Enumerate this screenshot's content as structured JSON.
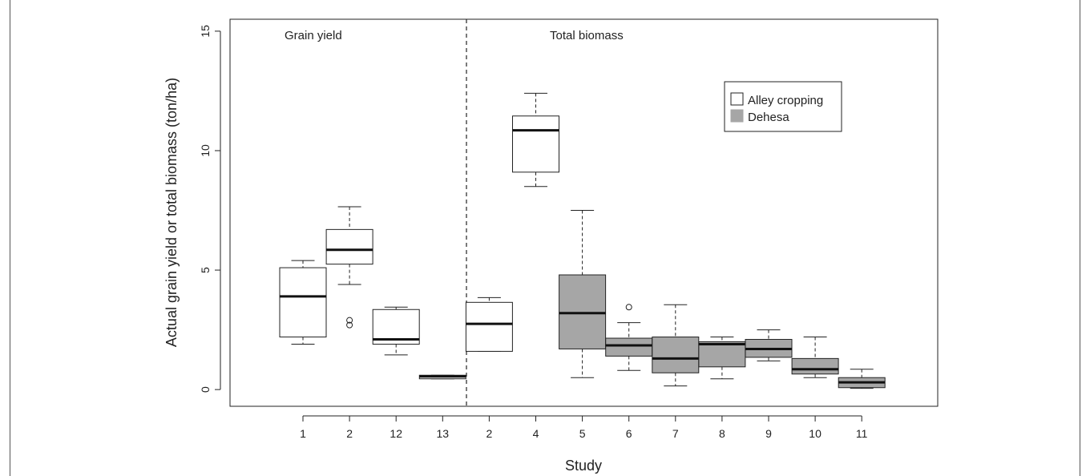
{
  "chart_data": {
    "type": "box",
    "xlabel": "Study",
    "ylabel": "Actual grain yield or total biomass (ton/ha)",
    "ylim": [
      -0.7,
      15.5
    ],
    "yticks": [
      0,
      5,
      10,
      15
    ],
    "panels": [
      {
        "label": "Grain yield",
        "boxes": [
          0,
          1,
          2,
          3
        ]
      },
      {
        "label": "Total biomass",
        "boxes": [
          4,
          5,
          6,
          7,
          8,
          9,
          10,
          11,
          12
        ]
      }
    ],
    "legend": {
      "placement": "top-right",
      "entries": [
        {
          "name": "Alley cropping",
          "color": "#ffffff"
        },
        {
          "name": "Dehesa",
          "color": "#a6a6a6"
        }
      ]
    },
    "boxes": [
      {
        "study": "1",
        "group": "Alley cropping",
        "min": 1.9,
        "q1": 2.2,
        "median": 3.9,
        "q3": 5.1,
        "max": 5.4,
        "outliers": []
      },
      {
        "study": "2",
        "group": "Alley cropping",
        "min": 4.4,
        "q1": 5.25,
        "median": 5.85,
        "q3": 6.7,
        "max": 7.65,
        "outliers": [
          2.7,
          2.9
        ]
      },
      {
        "study": "12",
        "group": "Alley cropping",
        "min": 1.45,
        "q1": 1.9,
        "median": 2.1,
        "q3": 3.35,
        "max": 3.45,
        "outliers": []
      },
      {
        "study": "13",
        "group": "Alley cropping",
        "min": 0.45,
        "q1": 0.45,
        "median": 0.55,
        "q3": 0.6,
        "max": 0.6,
        "outliers": []
      },
      {
        "study": "2",
        "group": "Alley cropping",
        "min": 1.6,
        "q1": 1.6,
        "median": 2.75,
        "q3": 3.65,
        "max": 3.85,
        "outliers": []
      },
      {
        "study": "4",
        "group": "Alley cropping",
        "min": 8.5,
        "q1": 9.1,
        "median": 10.85,
        "q3": 11.45,
        "max": 12.4,
        "outliers": []
      },
      {
        "study": "5",
        "group": "Dehesa",
        "min": 0.5,
        "q1": 1.7,
        "median": 3.2,
        "q3": 4.8,
        "max": 7.5,
        "outliers": []
      },
      {
        "study": "6",
        "group": "Dehesa",
        "min": 0.8,
        "q1": 1.4,
        "median": 1.85,
        "q3": 2.15,
        "max": 2.8,
        "outliers": [
          3.45
        ]
      },
      {
        "study": "7",
        "group": "Dehesa",
        "min": 0.15,
        "q1": 0.7,
        "median": 1.3,
        "q3": 2.2,
        "max": 3.55,
        "outliers": []
      },
      {
        "study": "8",
        "group": "Dehesa",
        "min": 0.45,
        "q1": 0.95,
        "median": 1.9,
        "q3": 2.0,
        "max": 2.2,
        "outliers": []
      },
      {
        "study": "9",
        "group": "Dehesa",
        "min": 1.2,
        "q1": 1.35,
        "median": 1.7,
        "q3": 2.1,
        "max": 2.5,
        "outliers": []
      },
      {
        "study": "10",
        "group": "Dehesa",
        "min": 0.5,
        "q1": 0.65,
        "median": 0.85,
        "q3": 1.3,
        "max": 2.2,
        "outliers": []
      },
      {
        "study": "11",
        "group": "Dehesa",
        "min": 0.05,
        "q1": 0.08,
        "median": 0.3,
        "q3": 0.5,
        "max": 0.85,
        "outliers": []
      }
    ]
  }
}
